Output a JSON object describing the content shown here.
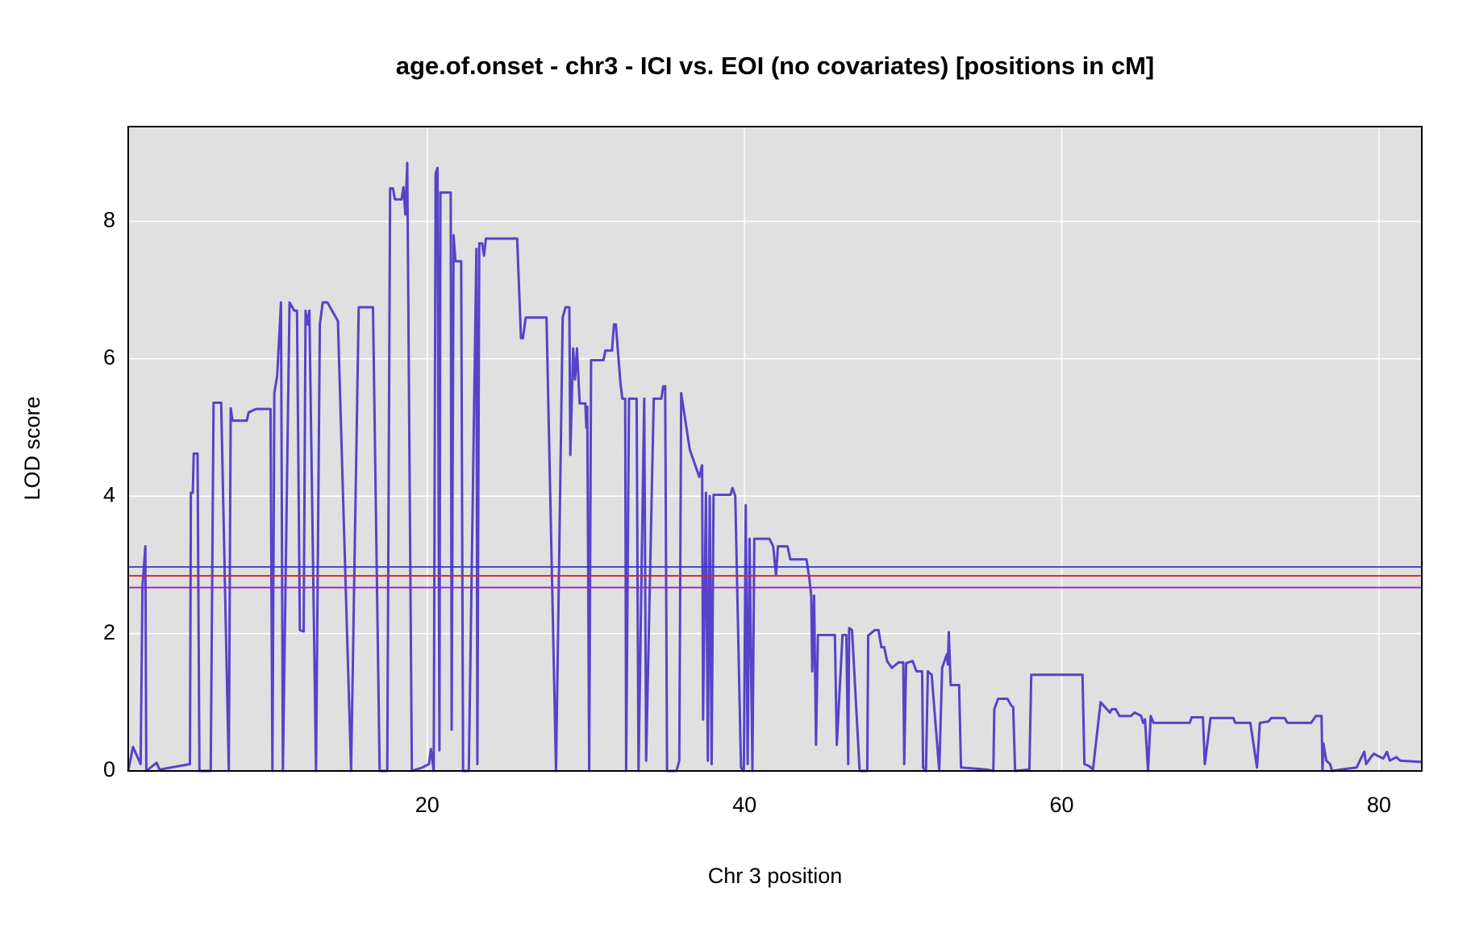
{
  "chart_data": {
    "type": "line",
    "title": "age.of.onset - chr3 - ICI vs. EOI (no covariates) [positions in cM]",
    "xlabel": "Chr 3 position",
    "ylabel": "LOD score",
    "xlim": [
      1.15,
      82.7
    ],
    "ylim": [
      0,
      9.38
    ],
    "xticks": [
      20,
      40,
      60,
      80
    ],
    "yticks": [
      0,
      2,
      4,
      6,
      8
    ],
    "grid": true,
    "hlines": [
      {
        "value": 2.97,
        "color": "#3333dd"
      },
      {
        "value": 2.84,
        "color": "#dd2222"
      },
      {
        "value": 2.67,
        "color": "#9922cc"
      }
    ],
    "series": [
      {
        "color": "#5544c8",
        "x": [
          1.15,
          1.45,
          1.93,
          2.05,
          2.23,
          2.29,
          2.94,
          3.12,
          5.04,
          5.1,
          5.22,
          5.28,
          5.52,
          5.64,
          6.35,
          6.53,
          7.01,
          7.49,
          7.61,
          7.73,
          8.63,
          8.74,
          9.22,
          10.12,
          10.24,
          10.36,
          10.54,
          10.78,
          10.9,
          11.32,
          11.62,
          11.79,
          11.97,
          12.21,
          12.33,
          12.45,
          12.57,
          12.99,
          13.23,
          13.41,
          13.71,
          14.37,
          15.2,
          15.68,
          16.58,
          17.0,
          17.48,
          17.66,
          17.84,
          17.96,
          18.38,
          18.5,
          18.62,
          18.74,
          19.03,
          19.69,
          20.11,
          20.23,
          20.41,
          20.53,
          20.65,
          20.77,
          20.83,
          21.48,
          21.54,
          21.66,
          21.78,
          22.14,
          22.26,
          22.62,
          23.1,
          23.16,
          23.28,
          23.46,
          23.58,
          23.7,
          25.67,
          25.91,
          26.03,
          26.21,
          27.52,
          28.12,
          28.54,
          28.72,
          28.96,
          29.02,
          29.2,
          29.32,
          29.44,
          29.61,
          29.97,
          30.03,
          30.09,
          30.21,
          30.33,
          31.11,
          31.23,
          31.65,
          31.77,
          31.89,
          32.18,
          32.3,
          32.48,
          32.54,
          32.72,
          33.2,
          33.32,
          33.68,
          33.8,
          34.28,
          34.76,
          34.88,
          35.0,
          35.12,
          35.71,
          35.89,
          36.01,
          36.55,
          37.15,
          37.33,
          37.39,
          37.57,
          37.69,
          37.81,
          37.93,
          38.05,
          39.12,
          39.24,
          39.42,
          39.78,
          39.96,
          40.08,
          40.2,
          40.32,
          40.5,
          40.62,
          41.57,
          41.81,
          41.99,
          42.11,
          42.71,
          42.89,
          43.91,
          44.09,
          44.21,
          44.27,
          44.39,
          44.51,
          44.63,
          45.7,
          45.82,
          46.18,
          46.42,
          46.54,
          46.6,
          46.78,
          47.26,
          47.74,
          47.8,
          48.21,
          48.45,
          48.63,
          48.81,
          48.99,
          49.29,
          49.71,
          50.01,
          50.07,
          50.19,
          50.6,
          50.84,
          51.2,
          51.26,
          51.44,
          51.56,
          51.8,
          52.28,
          52.46,
          52.76,
          52.82,
          52.88,
          53.0,
          53.53,
          53.65,
          55.27,
          55.69,
          55.75,
          55.99,
          56.58,
          56.82,
          56.94,
          57.06,
          57.96,
          58.08,
          61.31,
          61.43,
          61.73,
          61.97,
          62.45,
          63.04,
          63.16,
          63.4,
          63.64,
          64.36,
          64.6,
          65.01,
          65.13,
          65.25,
          65.44,
          65.61,
          65.79,
          68.07,
          68.19,
          68.9,
          69.02,
          69.38,
          70.82,
          70.94,
          71.89,
          72.31,
          72.49,
          73.03,
          73.21,
          74.05,
          74.23,
          75.72,
          76.02,
          76.38,
          76.44,
          76.5,
          76.68,
          76.92,
          77.04,
          77.58,
          78.59,
          79.07,
          79.19,
          79.49,
          79.67,
          80.27,
          80.5,
          80.68,
          81.1,
          81.34,
          82.66
        ],
        "values": [
          0,
          0.35,
          0.1,
          2.7,
          3.27,
          0,
          0.12,
          0.02,
          0.1,
          4.05,
          4.05,
          4.62,
          4.62,
          0,
          0,
          5.36,
          5.36,
          0,
          5.28,
          5.1,
          5.1,
          5.22,
          5.27,
          5.27,
          0,
          5.5,
          5.75,
          6.82,
          0,
          6.82,
          6.7,
          6.7,
          2.05,
          2.03,
          6.7,
          6.5,
          6.7,
          0,
          6.5,
          6.82,
          6.82,
          6.55,
          0,
          6.75,
          6.75,
          0,
          0,
          8.48,
          8.48,
          8.32,
          8.32,
          8.5,
          8.1,
          8.85,
          0,
          0.05,
          0.1,
          0.32,
          0,
          8.7,
          8.78,
          0.3,
          8.42,
          8.42,
          0.6,
          7.8,
          7.42,
          7.42,
          0,
          0,
          7.6,
          0.1,
          7.68,
          7.68,
          7.5,
          7.75,
          7.75,
          6.3,
          6.3,
          6.6,
          6.6,
          0,
          6.6,
          6.75,
          6.75,
          4.6,
          6.15,
          5.7,
          6.15,
          5.35,
          5.35,
          5.0,
          5.3,
          0,
          5.98,
          5.98,
          6.12,
          6.12,
          6.5,
          6.5,
          5.65,
          5.42,
          5.42,
          0,
          5.42,
          5.42,
          0,
          5.42,
          0.15,
          5.42,
          5.42,
          5.6,
          5.6,
          0,
          0,
          0.15,
          5.5,
          4.68,
          4.28,
          4.45,
          0.75,
          4.05,
          0.15,
          4.0,
          0.1,
          4.02,
          4.02,
          4.12,
          4.0,
          0.05,
          0,
          3.87,
          0.1,
          3.38,
          0,
          3.38,
          3.38,
          3.27,
          2.85,
          3.27,
          3.27,
          3.08,
          3.08,
          2.8,
          2.55,
          1.45,
          2.55,
          0.38,
          1.98,
          1.98,
          0.38,
          1.98,
          1.98,
          0.1,
          2.08,
          2.05,
          0,
          0,
          1.97,
          2.05,
          2.05,
          1.8,
          1.8,
          1.6,
          1.5,
          1.58,
          1.58,
          0.1,
          1.57,
          1.6,
          1.45,
          1.45,
          0.05,
          0,
          1.45,
          1.4,
          0,
          1.5,
          1.7,
          1.55,
          2.02,
          1.25,
          1.25,
          0.05,
          0.02,
          0,
          0.9,
          1.05,
          1.05,
          0.95,
          0.93,
          0,
          0.02,
          1.4,
          1.4,
          0.1,
          0.07,
          0.02,
          1.0,
          0.85,
          0.9,
          0.9,
          0.8,
          0.8,
          0.85,
          0.8,
          0.7,
          0.75,
          0,
          0.8,
          0.7,
          0.7,
          0.78,
          0.78,
          0.1,
          0.77,
          0.77,
          0.7,
          0.7,
          0.05,
          0.7,
          0.72,
          0.77,
          0.77,
          0.7,
          0.7,
          0.8,
          0.8,
          0,
          0.4,
          0.15,
          0.1,
          0,
          0.02,
          0.05,
          0.28,
          0.1,
          0.2,
          0.25,
          0.18,
          0.28,
          0.15,
          0.2,
          0.15,
          0.13
        ]
      }
    ]
  }
}
